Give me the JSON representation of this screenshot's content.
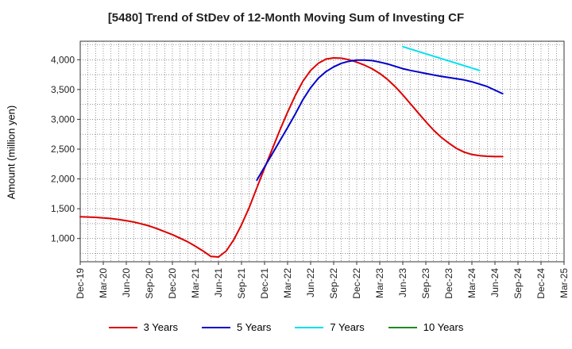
{
  "chart_data": {
    "type": "line",
    "title": "[5480]  Trend of StDev of 12-Month Moving Sum of Investing CF",
    "xlabel": "",
    "ylabel": "Amount (million yen)",
    "x_tick_labels": [
      "Dec-19",
      "Mar-20",
      "Jun-20",
      "Sep-20",
      "Dec-20",
      "Mar-21",
      "Jun-21",
      "Sep-21",
      "Dec-21",
      "Mar-22",
      "Jun-22",
      "Sep-22",
      "Dec-22",
      "Mar-23",
      "Jun-23",
      "Sep-23",
      "Dec-23",
      "Mar-24",
      "Jun-24",
      "Sep-24",
      "Dec-24",
      "Mar-25"
    ],
    "y_ticks": [
      1000,
      1500,
      2000,
      2500,
      3000,
      3500,
      4000
    ],
    "y_tick_labels": [
      "1,000",
      "1,500",
      "2,000",
      "2,500",
      "3,000",
      "3,500",
      "4,000"
    ],
    "ylim": [
      610,
      4310
    ],
    "grid": true,
    "legend_position": "bottom",
    "series": [
      {
        "name": "3 Years",
        "color": "#dd0000",
        "points": [
          [
            "Dec-19",
            1365
          ],
          [
            "Jan-20",
            1360
          ],
          [
            "Feb-20",
            1355
          ],
          [
            "Mar-20",
            1345
          ],
          [
            "Apr-20",
            1335
          ],
          [
            "May-20",
            1320
          ],
          [
            "Jun-20",
            1300
          ],
          [
            "Jul-20",
            1275
          ],
          [
            "Aug-20",
            1245
          ],
          [
            "Sep-20",
            1210
          ],
          [
            "Oct-20",
            1165
          ],
          [
            "Nov-20",
            1115
          ],
          [
            "Dec-20",
            1065
          ],
          [
            "Jan-21",
            1005
          ],
          [
            "Feb-21",
            945
          ],
          [
            "Mar-21",
            870
          ],
          [
            "Apr-21",
            790
          ],
          [
            "May-21",
            700
          ],
          [
            "Jun-21",
            690
          ],
          [
            "Jul-21",
            790
          ],
          [
            "Aug-21",
            980
          ],
          [
            "Sep-21",
            1230
          ],
          [
            "Oct-21",
            1520
          ],
          [
            "Nov-21",
            1850
          ],
          [
            "Dec-21",
            2180
          ],
          [
            "Jan-22",
            2500
          ],
          [
            "Feb-22",
            2820
          ],
          [
            "Mar-22",
            3120
          ],
          [
            "Apr-22",
            3400
          ],
          [
            "May-22",
            3640
          ],
          [
            "Jun-22",
            3820
          ],
          [
            "Jul-22",
            3940
          ],
          [
            "Aug-22",
            4010
          ],
          [
            "Sep-22",
            4030
          ],
          [
            "Oct-22",
            4025
          ],
          [
            "Nov-22",
            4000
          ],
          [
            "Dec-22",
            3960
          ],
          [
            "Jan-23",
            3910
          ],
          [
            "Feb-23",
            3850
          ],
          [
            "Mar-23",
            3770
          ],
          [
            "Apr-23",
            3670
          ],
          [
            "May-23",
            3550
          ],
          [
            "Jun-23",
            3410
          ],
          [
            "Jul-23",
            3260
          ],
          [
            "Aug-23",
            3110
          ],
          [
            "Sep-23",
            2960
          ],
          [
            "Oct-23",
            2820
          ],
          [
            "Nov-23",
            2700
          ],
          [
            "Dec-23",
            2600
          ],
          [
            "Jan-24",
            2510
          ],
          [
            "Feb-24",
            2450
          ],
          [
            "Mar-24",
            2410
          ],
          [
            "Apr-24",
            2390
          ],
          [
            "May-24",
            2380
          ],
          [
            "Jun-24",
            2375
          ],
          [
            "Jul-24",
            2375
          ]
        ]
      },
      {
        "name": "5 Years",
        "color": "#0000cc",
        "points": [
          [
            "Nov-21",
            1980
          ],
          [
            "Dec-21",
            2200
          ],
          [
            "Jan-22",
            2420
          ],
          [
            "Feb-22",
            2640
          ],
          [
            "Mar-22",
            2860
          ],
          [
            "Apr-22",
            3090
          ],
          [
            "May-22",
            3330
          ],
          [
            "Jun-22",
            3530
          ],
          [
            "Jul-22",
            3690
          ],
          [
            "Aug-22",
            3800
          ],
          [
            "Sep-22",
            3880
          ],
          [
            "Oct-22",
            3940
          ],
          [
            "Nov-22",
            3975
          ],
          [
            "Dec-22",
            3995
          ],
          [
            "Jan-23",
            3995
          ],
          [
            "Feb-23",
            3985
          ],
          [
            "Mar-23",
            3960
          ],
          [
            "Apr-23",
            3930
          ],
          [
            "May-23",
            3890
          ],
          [
            "Jun-23",
            3850
          ],
          [
            "Jul-23",
            3820
          ],
          [
            "Aug-23",
            3795
          ],
          [
            "Sep-23",
            3770
          ],
          [
            "Oct-23",
            3745
          ],
          [
            "Nov-23",
            3720
          ],
          [
            "Dec-23",
            3700
          ],
          [
            "Jan-24",
            3680
          ],
          [
            "Feb-24",
            3660
          ],
          [
            "Mar-24",
            3630
          ],
          [
            "Apr-24",
            3590
          ],
          [
            "May-24",
            3550
          ],
          [
            "Jun-24",
            3490
          ],
          [
            "Jul-24",
            3430
          ]
        ]
      },
      {
        "name": "7 Years",
        "color": "#00e0ee",
        "points": [
          [
            "Jun-23",
            4220
          ],
          [
            "Jul-23",
            4180
          ],
          [
            "Aug-23",
            4140
          ],
          [
            "Sep-23",
            4100
          ],
          [
            "Oct-23",
            4060
          ],
          [
            "Nov-23",
            4020
          ],
          [
            "Dec-23",
            3980
          ],
          [
            "Jan-24",
            3940
          ],
          [
            "Feb-24",
            3900
          ],
          [
            "Mar-24",
            3860
          ],
          [
            "Apr-24",
            3820
          ]
        ]
      },
      {
        "name": "10 Years",
        "color": "#228822",
        "points": []
      }
    ]
  }
}
